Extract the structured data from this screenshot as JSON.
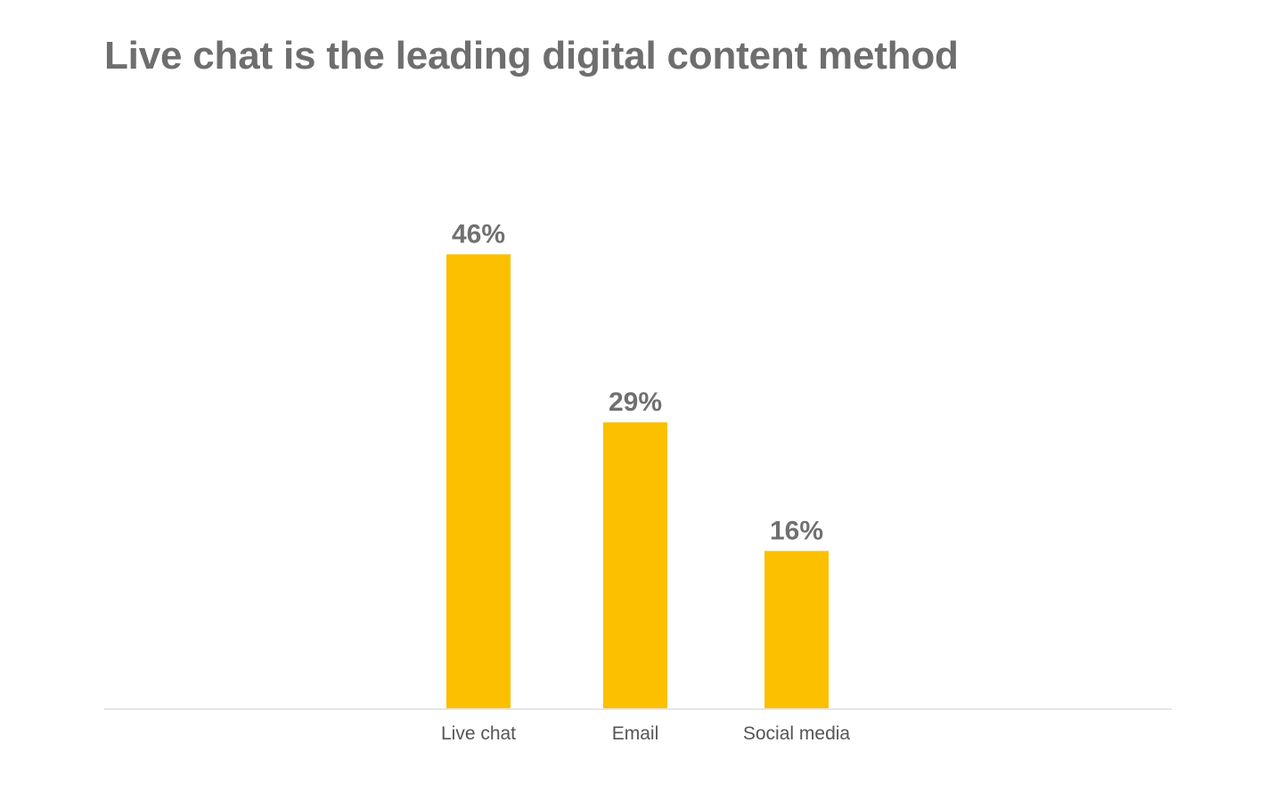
{
  "chart_data": {
    "type": "bar",
    "title": "Live chat is the leading digital content method",
    "xlabel": "",
    "ylabel": "",
    "categories": [
      "Live chat",
      "Email",
      "Social media"
    ],
    "values": [
      46,
      29,
      16
    ],
    "value_labels": [
      "46%",
      "29%",
      "16%"
    ],
    "ylim": [
      0,
      50
    ],
    "grid": false,
    "legend": "none"
  },
  "colors": {
    "bar": "#fcc000",
    "title": "#6e6e6e",
    "value_label": "#707070",
    "tick_label": "#555555",
    "axis_line": "#e5e5e5"
  }
}
